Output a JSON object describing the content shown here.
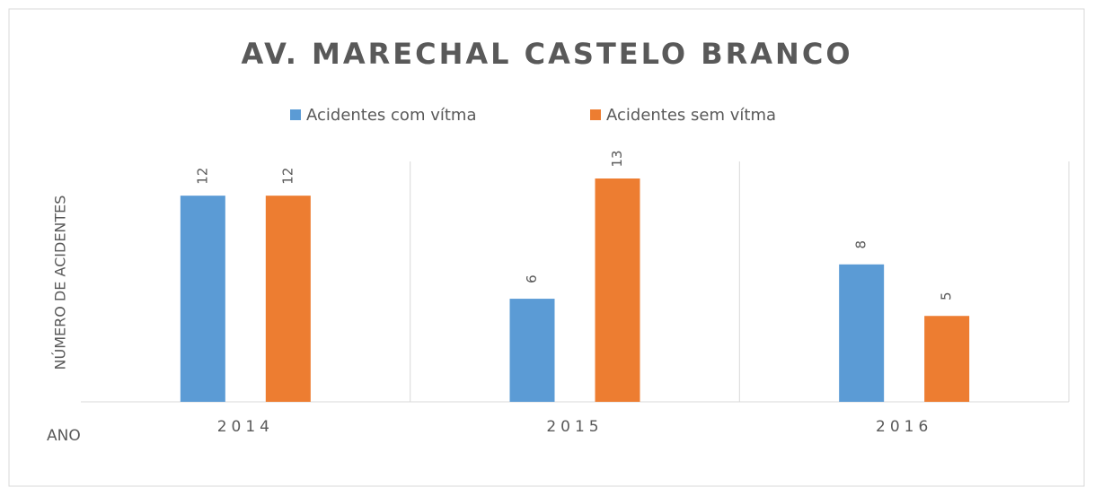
{
  "chart_data": {
    "type": "bar",
    "title": "AV. MARECHAL CASTELO BRANCO",
    "x_label": "ANO",
    "y_label": "NÚMERO DE ACIDENTES",
    "categories": [
      "2014",
      "2015",
      "2016"
    ],
    "series": [
      {
        "name": "Acidentes com vítma",
        "color": "#5b9bd5",
        "values": [
          12,
          6,
          8
        ]
      },
      {
        "name": "Acidentes sem vítma",
        "color": "#ed7d31",
        "values": [
          12,
          13,
          5
        ]
      }
    ],
    "legend": "top",
    "data_labels": true
  }
}
